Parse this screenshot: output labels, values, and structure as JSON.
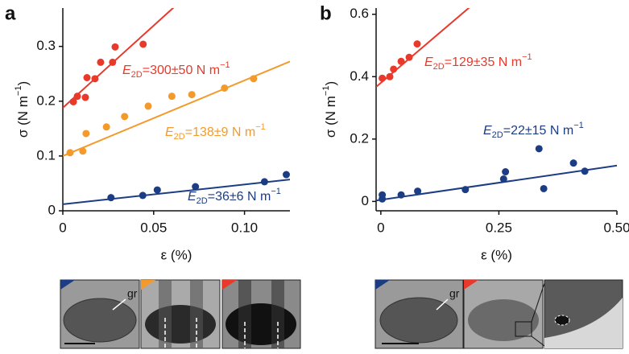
{
  "chart_data": [
    {
      "type": "scatter",
      "panel_label": "a",
      "xlabel": "ε (%)",
      "ylabel_parts": [
        "σ (N m",
        "−1",
        ")"
      ],
      "xlim": [
        0,
        0.125
      ],
      "ylim": [
        0,
        0.37
      ],
      "xticks": [
        0,
        0.05,
        {
          "value": 0.1,
          "label": "0.10"
        }
      ],
      "yticks": [
        0,
        0.1,
        0.2,
        0.3
      ],
      "series": [
        {
          "name": "E2D=300±50",
          "color": "#e8392a",
          "x": [
            0.0058,
            0.008,
            0.0124,
            0.0133,
            0.0177,
            0.0208,
            0.0274,
            0.0288,
            0.0442
          ],
          "values": [
            0.199,
            0.209,
            0.207,
            0.243,
            0.241,
            0.271,
            0.271,
            0.299,
            0.304
          ],
          "fit": {
            "intercept": 0.188,
            "slope": 3.0
          },
          "annotation": [
            "E",
            "2D",
            "=300±50 N m",
            "−1"
          ]
        },
        {
          "name": "E2D=138±9",
          "color": "#f39a2a",
          "x": [
            0.004,
            0.011,
            0.0128,
            0.024,
            0.034,
            0.047,
            0.06,
            0.071,
            0.089,
            0.105
          ],
          "values": [
            0.106,
            0.109,
            0.141,
            0.153,
            0.172,
            0.191,
            0.209,
            0.212,
            0.224,
            0.241
          ],
          "fit": {
            "intercept": 0.1,
            "slope": 1.38
          },
          "annotation": [
            "E",
            "2D",
            "=138±9 N m",
            "−1"
          ]
        },
        {
          "name": "E2D=36±6",
          "color": "#1c3c84",
          "x": [
            0.0265,
            0.044,
            0.052,
            0.073,
            0.111,
            0.123
          ],
          "values": [
            0.024,
            0.028,
            0.038,
            0.044,
            0.053,
            0.066
          ],
          "fit": {
            "intercept": 0.012,
            "slope": 0.36
          },
          "annotation": [
            "E",
            "2D",
            "=36±6 N m",
            "−1"
          ]
        }
      ]
    },
    {
      "type": "scatter",
      "panel_label": "b",
      "xlabel": "ε (%)",
      "ylabel_parts": [
        "σ (N m",
        "−1",
        ")"
      ],
      "xlim": [
        -0.01,
        0.5
      ],
      "ylim": [
        -0.03,
        0.62
      ],
      "xticks": [
        0,
        0.25,
        {
          "value": 0.5,
          "label": "0.50"
        }
      ],
      "yticks": [
        0,
        0.2,
        0.4,
        0.6
      ],
      "series": [
        {
          "name": "E2D=129±35",
          "color": "#e8392a",
          "x": [
            0.003,
            0.019,
            0.027,
            0.043,
            0.06,
            0.077
          ],
          "values": [
            0.395,
            0.4,
            0.424,
            0.449,
            0.462,
            0.505
          ],
          "fit": {
            "intercept": 0.38,
            "slope": 1.29
          },
          "annotation": [
            "E",
            "2D",
            "=129±35 N m",
            "−1"
          ]
        },
        {
          "name": "E2D=22±15",
          "color": "#1c3c84",
          "x": [
            0.003,
            0.003,
            0.043,
            0.078,
            0.179,
            0.26,
            0.264,
            0.335,
            0.345,
            0.408,
            0.432
          ],
          "values": [
            0.008,
            0.021,
            0.021,
            0.033,
            0.038,
            0.072,
            0.095,
            0.169,
            0.041,
            0.123,
            0.097
          ],
          "fit": {
            "intercept": 0.005,
            "slope": 0.22
          },
          "annotation": [
            "E",
            "2D",
            "=22±15 N m",
            "−1"
          ]
        }
      ]
    }
  ],
  "micrographs": {
    "a": {
      "label": "gr"
    },
    "b": {
      "label": "gr"
    }
  }
}
